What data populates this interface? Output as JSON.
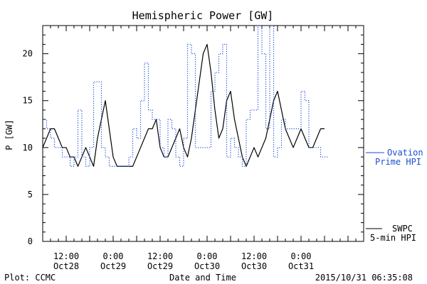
{
  "chart_data": {
    "type": "line",
    "title": "Hemispheric Power [GW]",
    "xlabel": "Date and Time",
    "ylabel": "P [GW]",
    "ylim": [
      0,
      23
    ],
    "xlim_hours": [
      0,
      82
    ],
    "y_ticks": [
      "0",
      "5",
      "10",
      "15",
      "20"
    ],
    "x_ticks": [
      {
        "time": "12:00",
        "day": "Oct28",
        "hour": 6
      },
      {
        "time": "0:00",
        "day": "Oct29",
        "hour": 18
      },
      {
        "time": "12:00",
        "day": "Oct29",
        "hour": 30
      },
      {
        "time": "0:00",
        "day": "Oct30",
        "hour": 42
      },
      {
        "time": "12:00",
        "day": "Oct30",
        "hour": 54
      },
      {
        "time": "0:00",
        "day": "Oct31",
        "hour": 66
      }
    ],
    "grid": false,
    "legend_position": "right",
    "footer_left": "Plot: CCMC",
    "footer_right": "2015/10/31 06:35:08",
    "series": [
      {
        "name_line1": "SWPC",
        "name_line2": "5-min HPI",
        "style": "solid",
        "color": "#000000",
        "x": [
          0,
          1,
          2,
          3,
          4,
          5,
          6,
          7,
          8,
          9,
          10,
          11,
          12,
          13,
          14,
          15,
          16,
          17,
          18,
          19,
          20,
          21,
          22,
          23,
          24,
          25,
          26,
          27,
          28,
          29,
          30,
          31,
          32,
          33,
          34,
          35,
          36,
          37,
          38,
          39,
          40,
          41,
          42,
          43,
          44,
          45,
          46,
          47,
          48,
          49,
          50,
          51,
          52,
          53,
          54,
          55,
          56,
          57,
          58,
          59,
          60,
          61,
          62,
          63,
          64,
          65,
          66,
          67,
          68,
          69,
          70,
          71,
          72
        ],
        "y": [
          10,
          11,
          12,
          12,
          11,
          10,
          10,
          9,
          9,
          8,
          9,
          10,
          9,
          8,
          11,
          13,
          15,
          12,
          9,
          8,
          8,
          8,
          8,
          8,
          9,
          10,
          11,
          12,
          12,
          13,
          10,
          9,
          9,
          10,
          11,
          12,
          10,
          9,
          11,
          14,
          17,
          20,
          21,
          18,
          14,
          11,
          12,
          15,
          16,
          13,
          11,
          9,
          8,
          9,
          10,
          9,
          10,
          11,
          13,
          15,
          16,
          14,
          12,
          11,
          10,
          11,
          12,
          11,
          10,
          10,
          11,
          12,
          12
        ]
      },
      {
        "name_line1": "Ovation",
        "name_line2": "Prime HPI",
        "style": "dotted",
        "color": "#1a4fcf",
        "x": [
          0,
          1,
          2,
          3,
          4,
          5,
          6,
          7,
          8,
          9,
          10,
          11,
          12,
          13,
          14,
          15,
          16,
          17,
          18,
          19,
          20,
          21,
          22,
          23,
          24,
          25,
          26,
          27,
          28,
          29,
          30,
          31,
          32,
          33,
          34,
          35,
          36,
          37,
          38,
          39,
          40,
          41,
          42,
          43,
          44,
          45,
          46,
          47,
          48,
          49,
          50,
          51,
          52,
          53,
          54,
          55,
          56,
          57,
          58,
          59,
          60,
          61,
          62,
          63,
          64,
          65,
          66,
          67,
          68,
          69,
          70,
          71,
          72
        ],
        "y": [
          13,
          12,
          11,
          10,
          10,
          9,
          9,
          8,
          9,
          14,
          9,
          8,
          10,
          17,
          17,
          10,
          9,
          8,
          8,
          8,
          8,
          8,
          9,
          12,
          11,
          15,
          19,
          14,
          13,
          13,
          10,
          9,
          13,
          12,
          9,
          8,
          11,
          21,
          20,
          10,
          10,
          10,
          10,
          16,
          18,
          20,
          21,
          9,
          11,
          10,
          9,
          8,
          13,
          14,
          14,
          23,
          20,
          12,
          23,
          9,
          10,
          13,
          12,
          12,
          12,
          12,
          16,
          15,
          10,
          10,
          10,
          9,
          9
        ]
      }
    ]
  }
}
